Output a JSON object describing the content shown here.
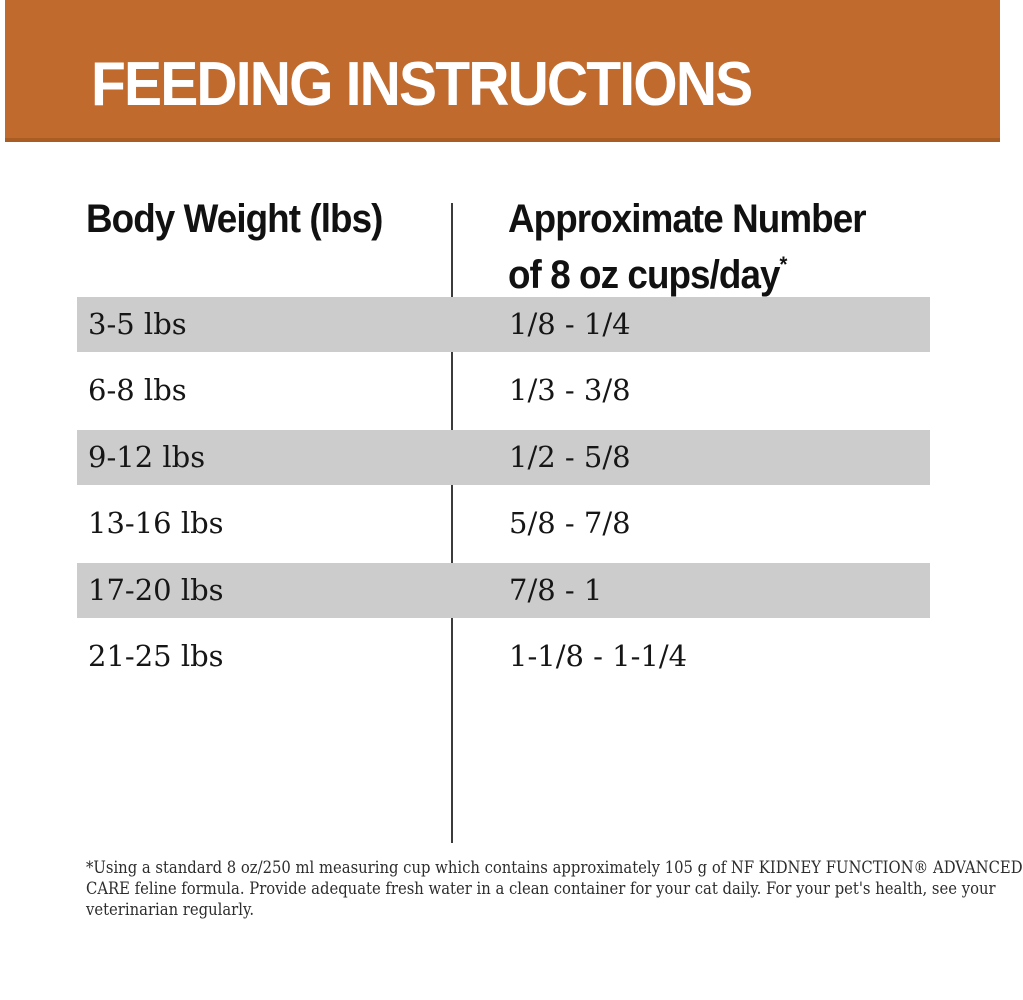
{
  "banner": {
    "title": "FEEDING INSTRUCTIONS"
  },
  "colors": {
    "banner_orange": "#c06a2e",
    "banner_edge": "#aa5d22",
    "row_gray": "#cccccc",
    "divider": "#3b3b3b",
    "title_text": "#ffffff",
    "table_text": "#161616",
    "footnote_text": "#2d2d2d"
  },
  "table": {
    "col1_header": "Body Weight (lbs)",
    "col2_header_line1": "Approximate Number",
    "col2_header_line2": "of 8 oz cups/day",
    "col2_footnote_marker": "*",
    "rows": [
      {
        "weight": "3-5 lbs",
        "cups": "1/8 - 1/4"
      },
      {
        "weight": "6-8 lbs",
        "cups": "1/3 - 3/8"
      },
      {
        "weight": "9-12 lbs",
        "cups": "1/2 - 5/8"
      },
      {
        "weight": "13-16 lbs",
        "cups": "5/8 - 7/8"
      },
      {
        "weight": "17-20 lbs",
        "cups": "7/8 - 1"
      },
      {
        "weight": "21-25 lbs",
        "cups": "1-1/8 - 1-1/4"
      }
    ]
  },
  "footnote": {
    "lines": [
      "*Using a standard 8 oz/250 ml measuring cup which contains approximately 105 g of NF KIDNEY FUNCTION® ADVANCED",
      "CARE feline formula. Provide adequate fresh water in a clean container for your cat daily. For your pet's health, see your",
      "veterinarian regularly."
    ]
  }
}
